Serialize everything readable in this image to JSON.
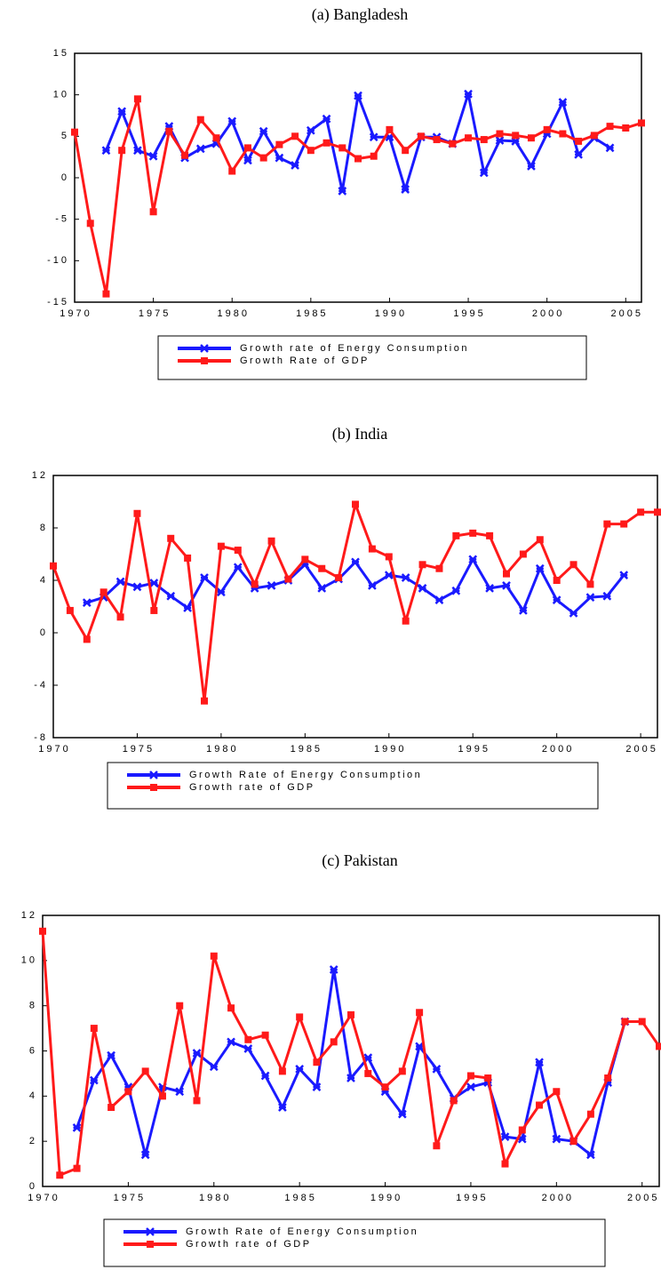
{
  "chart_data": [
    {
      "type": "line",
      "title": "(a) Bangladesh",
      "x": [
        1970,
        1971,
        1972,
        1973,
        1974,
        1975,
        1976,
        1977,
        1978,
        1979,
        1980,
        1981,
        1982,
        1983,
        1984,
        1985,
        1986,
        1987,
        1988,
        1989,
        1990,
        1991,
        1992,
        1993,
        1994,
        1995,
        1996,
        1997,
        1998,
        1999,
        2000,
        2001,
        2002,
        2003,
        2004,
        2005,
        2006
      ],
      "series": [
        {
          "name": "Growth rate of Energy Consumption",
          "color": "#1a1aff",
          "values": [
            null,
            null,
            3.3,
            8.0,
            3.3,
            2.6,
            6.2,
            2.4,
            3.5,
            4.1,
            6.8,
            2.1,
            5.6,
            2.4,
            1.5,
            5.7,
            7.1,
            -1.6,
            9.9,
            4.9,
            4.9,
            -1.4,
            4.9,
            4.9,
            4.1,
            10.1,
            0.6,
            4.5,
            4.4,
            1.4,
            5.3,
            9.1,
            2.8,
            4.8,
            3.6,
            null,
            null
          ]
        },
        {
          "name": "Growth Rate of GDP",
          "color": "#ff1a1a",
          "values": [
            5.5,
            -5.5,
            -14,
            3.3,
            9.5,
            -4.1,
            5.6,
            2.7,
            7.0,
            4.8,
            0.8,
            3.6,
            2.4,
            4.0,
            5.0,
            3.3,
            4.2,
            3.6,
            2.3,
            2.6,
            5.8,
            3.3,
            5.0,
            4.6,
            4.1,
            4.8,
            4.6,
            5.3,
            5.1,
            4.8,
            5.8,
            5.3,
            4.4,
            5.1,
            6.2,
            6.0,
            6.6
          ]
        }
      ],
      "xlim": [
        1970,
        2006
      ],
      "xticks": [
        1970,
        1975,
        1980,
        1985,
        1990,
        1995,
        2000,
        2005
      ],
      "ylim": [
        -15,
        15
      ],
      "yticks": [
        -15,
        -10,
        -5,
        0,
        5,
        10,
        15
      ]
    },
    {
      "type": "line",
      "title": "(b) India",
      "x": [
        1970,
        1971,
        1972,
        1973,
        1974,
        1975,
        1976,
        1977,
        1978,
        1979,
        1980,
        1981,
        1982,
        1983,
        1984,
        1985,
        1986,
        1987,
        1988,
        1989,
        1990,
        1991,
        1992,
        1993,
        1994,
        1995,
        1996,
        1997,
        1998,
        1999,
        2000,
        2001,
        2002,
        2003,
        2004,
        2005,
        2006
      ],
      "series": [
        {
          "name": "Growth Rate of Energy Consumption",
          "color": "#1a1aff",
          "values": [
            null,
            null,
            2.3,
            2.7,
            3.9,
            3.5,
            3.8,
            2.8,
            1.9,
            4.2,
            3.1,
            5.0,
            3.4,
            3.6,
            4.0,
            5.2,
            3.4,
            4.1,
            5.4,
            3.6,
            4.4,
            4.2,
            3.4,
            2.5,
            3.2,
            5.6,
            3.4,
            3.6,
            1.7,
            4.9,
            2.5,
            1.5,
            2.7,
            2.8,
            4.4,
            null,
            null
          ]
        },
        {
          "name": "Growth rate of GDP",
          "color": "#ff1a1a",
          "values": [
            5.1,
            1.7,
            -0.5,
            3.1,
            1.2,
            9.1,
            1.7,
            7.2,
            5.7,
            -5.2,
            6.6,
            6.3,
            3.7,
            7.0,
            4.1,
            5.6,
            4.9,
            4.2,
            9.8,
            6.4,
            5.8,
            0.9,
            5.2,
            4.9,
            7.4,
            7.6,
            7.4,
            4.5,
            6.0,
            7.1,
            4.0,
            5.2,
            3.7,
            8.3,
            8.3,
            9.2,
            9.2
          ]
        }
      ],
      "xlim": [
        1970,
        2006
      ],
      "xticks": [
        1970,
        1975,
        1980,
        1985,
        1990,
        1995,
        2000,
        2005
      ],
      "ylim": [
        -8,
        12
      ],
      "yticks": [
        -8,
        -4,
        0,
        4,
        8,
        12
      ]
    },
    {
      "type": "line",
      "title": "(c) Pakistan",
      "x": [
        1970,
        1971,
        1972,
        1973,
        1974,
        1975,
        1976,
        1977,
        1978,
        1979,
        1980,
        1981,
        1982,
        1983,
        1984,
        1985,
        1986,
        1987,
        1988,
        1989,
        1990,
        1991,
        1992,
        1993,
        1994,
        1995,
        1996,
        1997,
        1998,
        1999,
        2000,
        2001,
        2002,
        2003,
        2004,
        2005,
        2006
      ],
      "series": [
        {
          "name": "Growth Rate of Energy Consumption",
          "color": "#1a1aff",
          "values": [
            null,
            null,
            2.6,
            4.7,
            5.8,
            4.4,
            1.4,
            4.4,
            4.2,
            5.9,
            5.3,
            6.4,
            6.1,
            4.9,
            3.5,
            5.2,
            4.4,
            9.6,
            4.8,
            5.7,
            4.2,
            3.2,
            6.2,
            5.2,
            3.9,
            4.4,
            4.6,
            2.2,
            2.1,
            5.5,
            2.1,
            2.0,
            1.4,
            4.6,
            7.3,
            null,
            null
          ]
        },
        {
          "name": "Growth rate of GDP",
          "color": "#ff1a1a",
          "values": [
            11.3,
            0.5,
            0.8,
            7.0,
            3.5,
            4.2,
            5.1,
            4.0,
            8.0,
            3.8,
            10.2,
            7.9,
            6.5,
            6.7,
            5.1,
            7.5,
            5.5,
            6.4,
            7.6,
            5.0,
            4.4,
            5.1,
            7.7,
            1.8,
            3.8,
            4.9,
            4.8,
            1.0,
            2.5,
            3.6,
            4.2,
            2.0,
            3.2,
            4.8,
            7.3,
            7.3,
            6.2
          ]
        }
      ],
      "xlim": [
        1970,
        2006
      ],
      "xticks": [
        1970,
        1975,
        1980,
        1985,
        1990,
        1995,
        2000,
        2005
      ],
      "ylim": [
        0,
        12
      ],
      "yticks": [
        0,
        2,
        4,
        6,
        8,
        10,
        12
      ]
    }
  ]
}
